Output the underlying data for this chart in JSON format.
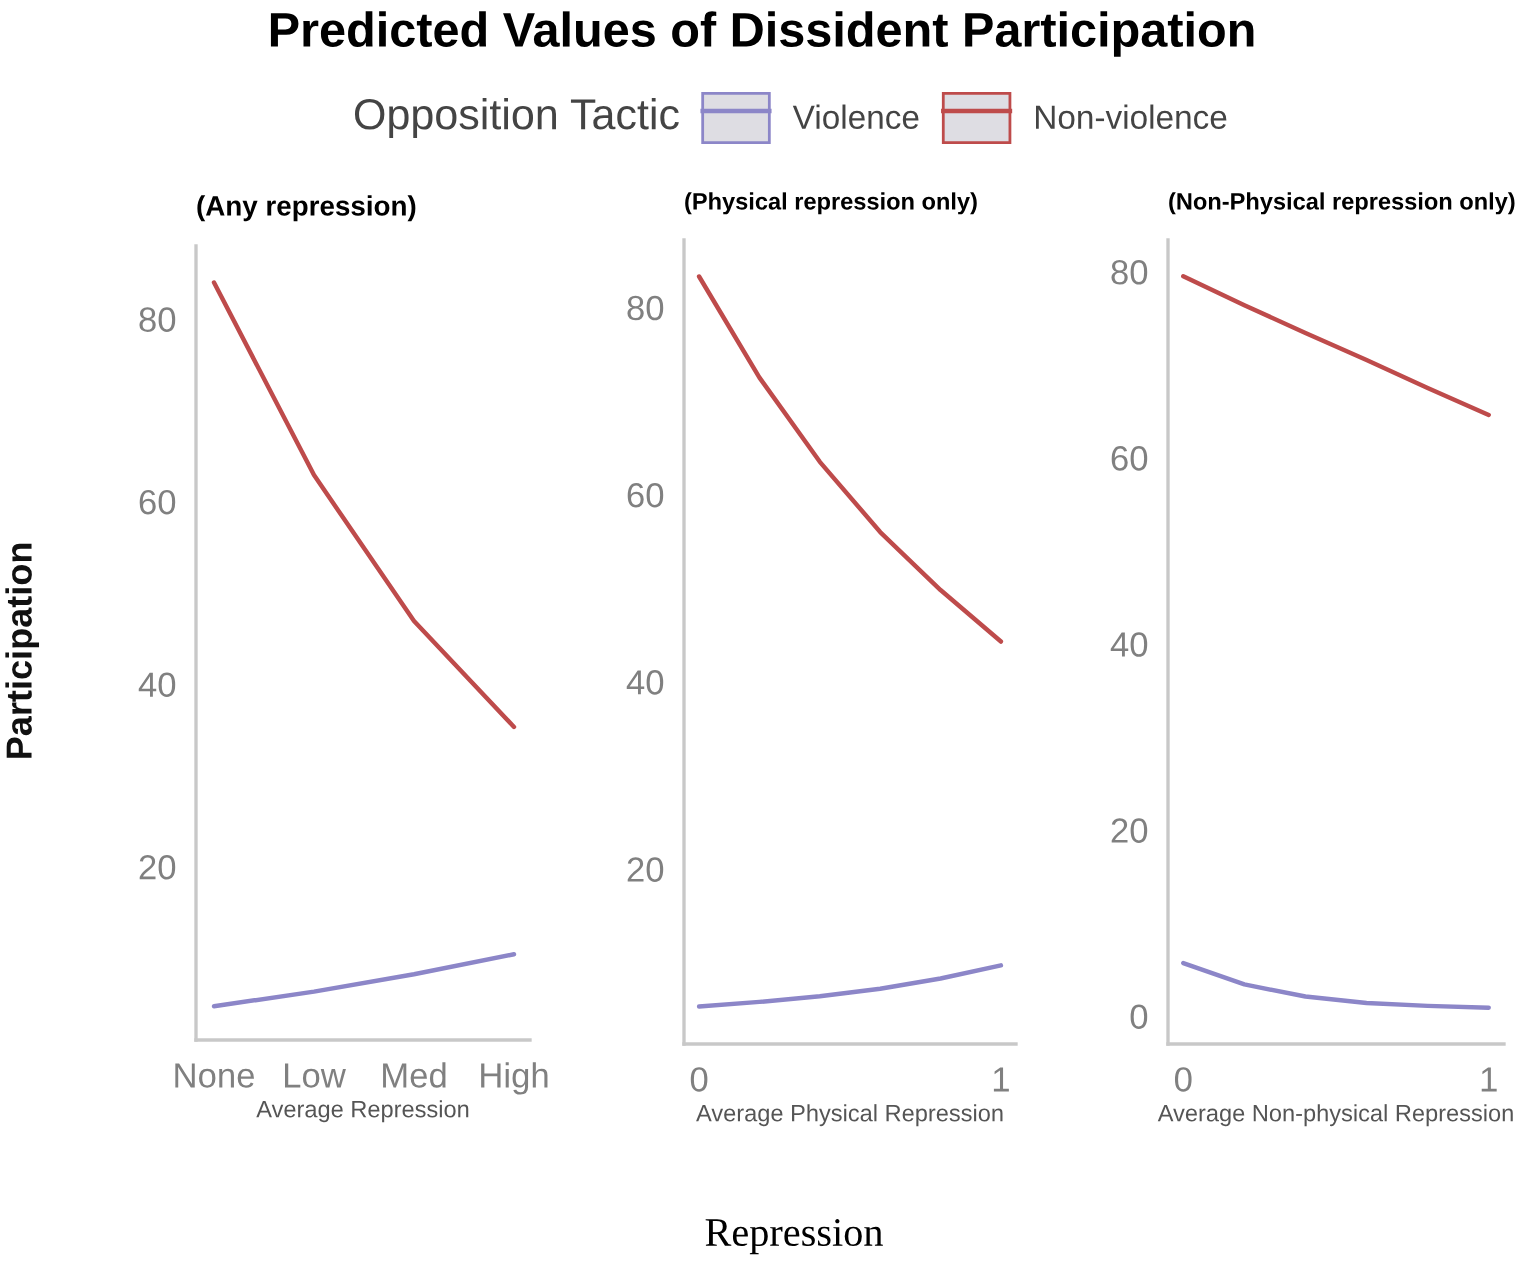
{
  "chart_data": [
    {
      "type": "line",
      "title": "Predicted Values of Dissident Participation",
      "subtitle": "(Any repression)",
      "xlabel": "Average Repression",
      "ylabel": "Participation",
      "legend_title": "Opposition Tactic",
      "legend": "top",
      "grid": false,
      "annotations": [
        "Repression"
      ],
      "categories": [
        "None",
        "Low",
        "Med",
        "High"
      ],
      "ylim": [
        1,
        88
      ],
      "yticks": [
        20,
        40,
        60,
        80
      ],
      "series": [
        {
          "name": "Violence",
          "color": "#8c86c8",
          "values": [
            4.7,
            6.3,
            8.2,
            10.4
          ]
        },
        {
          "name": "Non-violence",
          "color": "#be4b4b",
          "values": [
            84.0,
            62.9,
            46.9,
            35.3
          ]
        }
      ]
    },
    {
      "type": "line",
      "subtitle": "(Physical repression only)",
      "xlabel": "Average Physical Repression",
      "grid": false,
      "x": [
        0,
        0.2,
        0.4,
        0.6,
        0.8,
        1
      ],
      "xlim": [
        -0.05,
        1.05
      ],
      "xticks": [
        0,
        1
      ],
      "ylim": [
        1.3,
        87.2
      ],
      "yticks": [
        20,
        40,
        60,
        80
      ],
      "series": [
        {
          "color": "#8c86c8",
          "values": [
            5.3,
            5.8,
            6.4,
            7.2,
            8.3,
            9.7
          ]
        },
        {
          "color": "#be4b4b",
          "values": [
            83.3,
            72.5,
            63.5,
            56.0,
            49.8,
            44.3
          ]
        }
      ]
    },
    {
      "type": "line",
      "subtitle": "(Non-Physical repression only)",
      "xlabel": "Average Non-physical Repression",
      "grid": false,
      "x": [
        0,
        0.2,
        0.4,
        0.6,
        0.8,
        1
      ],
      "xlim": [
        -0.05,
        1.05
      ],
      "xticks": [
        0,
        1
      ],
      "ylim": [
        -3,
        83.4
      ],
      "yticks": [
        0,
        20,
        40,
        60,
        80
      ],
      "series": [
        {
          "color": "#8c86c8",
          "values": [
            5.7,
            3.4,
            2.1,
            1.4,
            1.1,
            0.9
          ]
        },
        {
          "color": "#be4b4b",
          "values": [
            79.5,
            76.4,
            73.4,
            70.5,
            67.5,
            64.6
          ]
        }
      ]
    }
  ]
}
